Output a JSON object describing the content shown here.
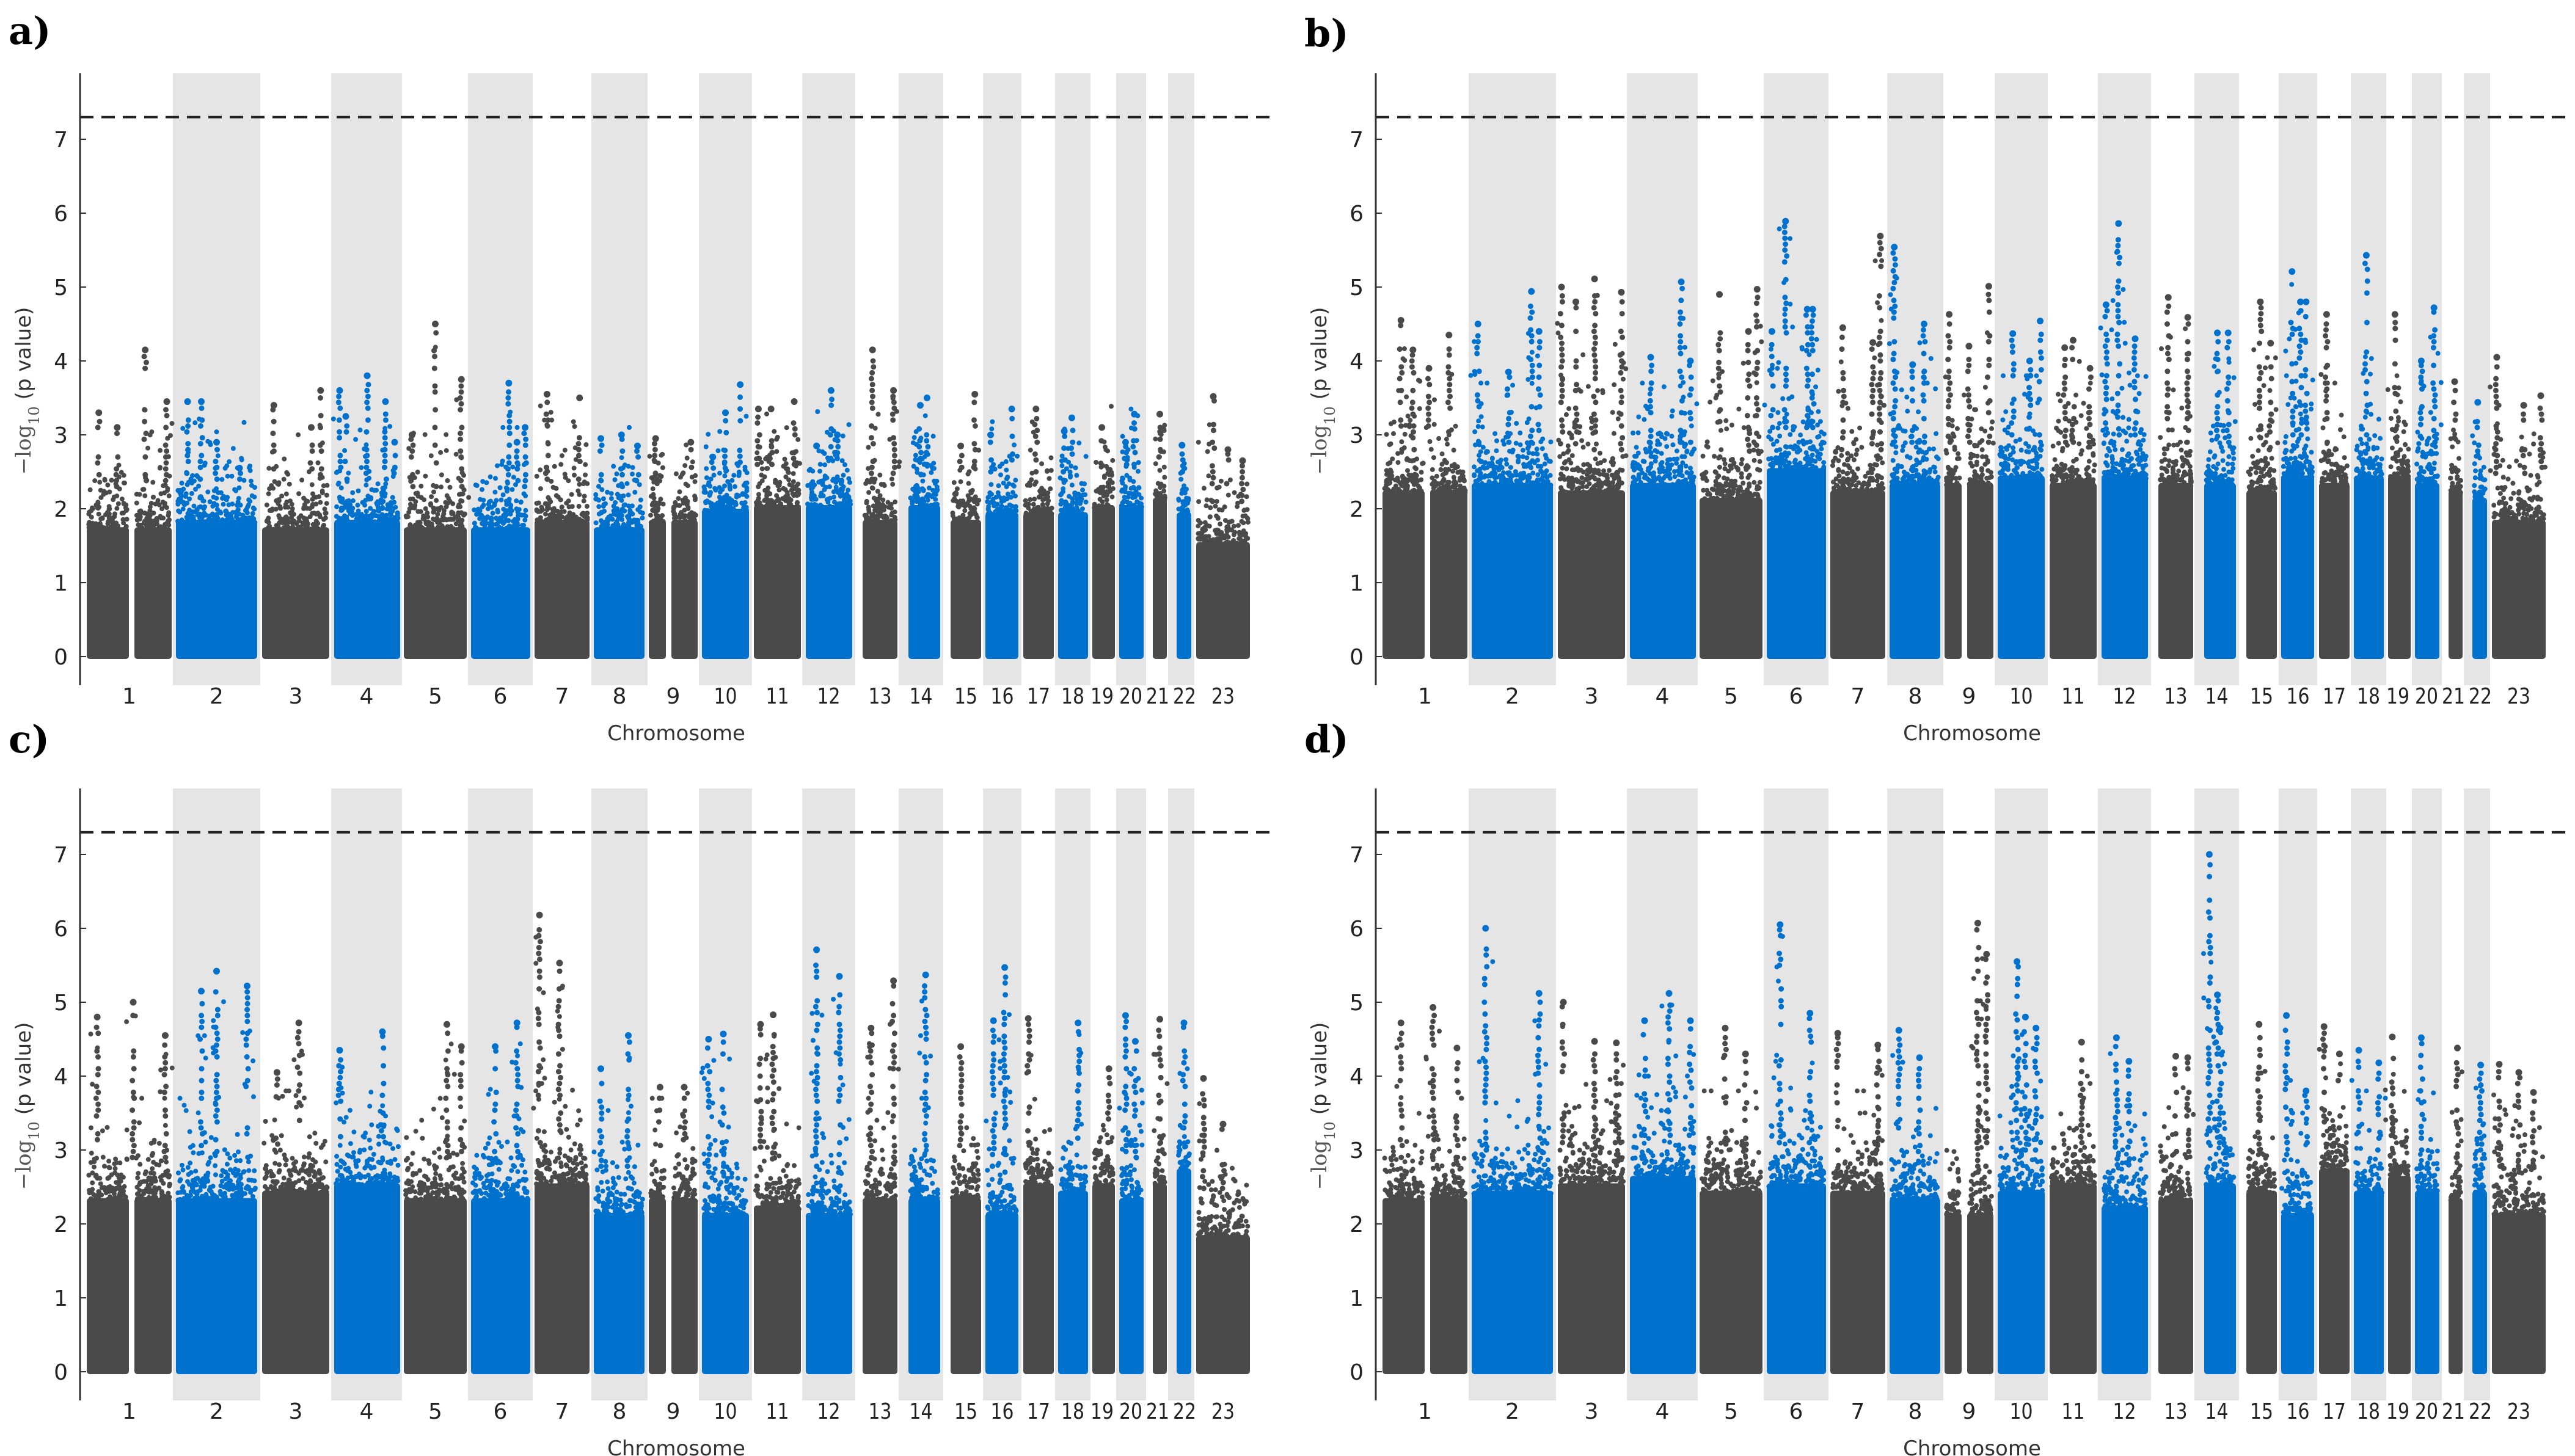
{
  "figure": {
    "colors": {
      "odd": "#4a4a4a",
      "even": "#0072ce",
      "band": "#e5e5e5",
      "threshold": "#222222"
    }
  },
  "chart_data": [
    {
      "type": "scatter",
      "panel_label": "a)",
      "xlabel": "Chromosome",
      "ylabel_parts": {
        "main": "−log",
        "sub": "10",
        "rest": " (p value)"
      },
      "ylim": [
        -0.4,
        7.85
      ],
      "yticks": [
        0,
        1,
        2,
        3,
        4,
        5,
        6,
        7
      ],
      "threshold": 7.3,
      "chromosomes": [
        "1",
        "2",
        "3",
        "4",
        "5",
        "6",
        "7",
        "8",
        "9",
        "10",
        "11",
        "12",
        "13",
        "14",
        "15",
        "16",
        "17",
        "18",
        "19",
        "20",
        "21",
        "22",
        "23"
      ],
      "bulk": [
        2.2,
        2.3,
        2.2,
        2.3,
        2.2,
        2.2,
        2.3,
        2.2,
        2.3,
        2.45,
        2.5,
        2.5,
        2.3,
        2.5,
        2.3,
        2.4,
        2.4,
        2.4,
        2.5,
        2.5,
        2.6,
        2.4,
        2.0
      ],
      "peaks": [
        [
          [
            0.12,
            3.3
          ],
          [
            0.35,
            3.1
          ],
          [
            0.7,
            4.15
          ],
          [
            0.97,
            3.45
          ]
        ],
        [
          [
            0.12,
            3.45
          ],
          [
            0.3,
            3.45
          ],
          [
            0.5,
            2.9
          ],
          [
            0.8,
            2.55
          ]
        ],
        [
          [
            0.15,
            3.4
          ],
          [
            0.75,
            3.1
          ],
          [
            0.9,
            3.6
          ]
        ],
        [
          [
            0.05,
            3.6
          ],
          [
            0.15,
            3.25
          ],
          [
            0.5,
            3.8
          ],
          [
            0.8,
            3.45
          ],
          [
            0.95,
            2.9
          ]
        ],
        [
          [
            0.1,
            3.0
          ],
          [
            0.5,
            4.5
          ],
          [
            0.95,
            3.75
          ]
        ],
        [
          [
            0.65,
            3.7
          ],
          [
            0.8,
            2.9
          ],
          [
            0.95,
            3.1
          ]
        ],
        [
          [
            0.2,
            3.55
          ],
          [
            0.85,
            3.5
          ]
        ],
        [
          [
            0.1,
            2.95
          ],
          [
            0.55,
            3.0
          ],
          [
            0.9,
            2.85
          ]
        ],
        [
          [
            0.1,
            2.95
          ],
          [
            0.9,
            2.9
          ]
        ],
        [
          [
            0.2,
            2.7
          ],
          [
            0.5,
            3.3
          ],
          [
            0.85,
            3.68
          ]
        ],
        [
          [
            0.05,
            3.35
          ],
          [
            0.35,
            3.35
          ],
          [
            0.9,
            3.45
          ]
        ],
        [
          [
            0.2,
            2.85
          ],
          [
            0.55,
            3.6
          ],
          [
            0.7,
            3.0
          ]
        ],
        [
          [
            0.25,
            4.15
          ],
          [
            0.95,
            3.6
          ]
        ],
        [
          [
            0.35,
            3.4
          ],
          [
            0.6,
            3.5
          ]
        ],
        [
          [
            0.3,
            2.85
          ],
          [
            0.85,
            3.55
          ]
        ],
        [
          [
            0.1,
            3.0
          ],
          [
            0.85,
            3.35
          ]
        ],
        [
          [
            0.4,
            3.35
          ]
        ],
        [
          [
            0.15,
            3.05
          ],
          [
            0.45,
            3.23
          ]
        ],
        [
          [
            0.4,
            3.1
          ]
        ],
        [
          [
            0.2,
            2.9
          ],
          [
            0.65,
            3.28
          ]
        ],
        [
          [
            0.5,
            3.28
          ]
        ],
        [
          [
            0.3,
            2.86
          ]
        ],
        [
          [
            0.3,
            3.52
          ],
          [
            0.6,
            2.8
          ],
          [
            0.9,
            2.65
          ]
        ]
      ]
    },
    {
      "type": "scatter",
      "panel_label": "b)",
      "xlabel": "Chromosome",
      "ylabel_parts": {
        "main": "−log",
        "sub": "10",
        "rest": " (p value)"
      },
      "ylim": [
        -0.4,
        7.85
      ],
      "yticks": [
        0,
        1,
        2,
        3,
        4,
        5,
        6,
        7
      ],
      "threshold": 7.3,
      "chromosomes": [
        "1",
        "2",
        "3",
        "4",
        "5",
        "6",
        "7",
        "8",
        "9",
        "10",
        "11",
        "12",
        "13",
        "14",
        "15",
        "16",
        "17",
        "18",
        "19",
        "20",
        "21",
        "22",
        "23"
      ],
      "bulk": [
        2.7,
        2.8,
        2.7,
        2.8,
        2.6,
        3.0,
        2.7,
        2.8,
        2.8,
        2.9,
        2.8,
        2.9,
        2.8,
        2.8,
        2.7,
        2.9,
        2.8,
        2.9,
        2.9,
        2.8,
        2.7,
        2.6,
        2.3
      ],
      "peaks": [
        [
          [
            0.2,
            4.55
          ],
          [
            0.35,
            4.15
          ],
          [
            0.55,
            3.9
          ],
          [
            0.8,
            4.35
          ]
        ],
        [
          [
            0.05,
            4.5
          ],
          [
            0.45,
            3.85
          ],
          [
            0.75,
            4.94
          ],
          [
            0.85,
            4.4
          ]
        ],
        [
          [
            0.02,
            5.0
          ],
          [
            0.25,
            4.8
          ],
          [
            0.55,
            5.11
          ],
          [
            0.98,
            4.93
          ]
        ],
        [
          [
            0.3,
            4.05
          ],
          [
            0.8,
            5.07
          ],
          [
            0.95,
            4.0
          ]
        ],
        [
          [
            0.3,
            4.9
          ],
          [
            0.8,
            4.4
          ],
          [
            0.95,
            4.97
          ]
        ],
        [
          [
            0.05,
            4.4
          ],
          [
            0.3,
            5.89
          ],
          [
            0.7,
            4.7
          ],
          [
            0.8,
            4.7
          ]
        ],
        [
          [
            0.2,
            4.45
          ],
          [
            0.8,
            4.25
          ],
          [
            0.95,
            5.69
          ]
        ],
        [
          [
            0.05,
            5.54
          ],
          [
            0.45,
            3.95
          ],
          [
            0.7,
            4.5
          ]
        ],
        [
          [
            0.05,
            4.63
          ],
          [
            0.5,
            4.2
          ],
          [
            0.95,
            5.01
          ]
        ],
        [
          [
            0.3,
            4.37
          ],
          [
            0.7,
            4.0
          ],
          [
            0.95,
            4.54
          ]
        ],
        [
          [
            0.3,
            4.18
          ],
          [
            0.5,
            4.28
          ],
          [
            0.9,
            3.9
          ]
        ],
        [
          [
            0.05,
            4.76
          ],
          [
            0.35,
            5.86
          ],
          [
            0.75,
            4.3
          ]
        ],
        [
          [
            0.25,
            4.86
          ],
          [
            0.9,
            4.59
          ]
        ],
        [
          [
            0.4,
            4.38
          ],
          [
            0.8,
            4.38
          ]
        ],
        [
          [
            0.45,
            4.8
          ],
          [
            0.85,
            4.24
          ]
        ],
        [
          [
            0.3,
            5.21
          ],
          [
            0.6,
            4.8
          ],
          [
            0.8,
            4.8
          ]
        ],
        [
          [
            0.2,
            4.63
          ]
        ],
        [
          [
            0.4,
            5.43
          ]
        ],
        [
          [
            0.25,
            4.63
          ]
        ],
        [
          [
            0.2,
            4.0
          ],
          [
            0.85,
            4.72
          ]
        ],
        [
          [
            0.4,
            3.72
          ]
        ],
        [
          [
            0.3,
            3.44
          ]
        ],
        [
          [
            0.05,
            4.05
          ],
          [
            0.6,
            3.4
          ],
          [
            0.95,
            3.53
          ]
        ]
      ]
    },
    {
      "type": "scatter",
      "panel_label": "c)",
      "xlabel": "Chromosome",
      "ylabel_parts": {
        "main": "−log",
        "sub": "10",
        "rest": " (p value)"
      },
      "ylim": [
        -0.4,
        7.85
      ],
      "yticks": [
        0,
        1,
        2,
        3,
        4,
        5,
        6,
        7
      ],
      "threshold": 7.3,
      "chromosomes": [
        "1",
        "2",
        "3",
        "4",
        "5",
        "6",
        "7",
        "8",
        "9",
        "10",
        "11",
        "12",
        "13",
        "14",
        "15",
        "16",
        "17",
        "18",
        "19",
        "20",
        "21",
        "22",
        "23"
      ],
      "bulk": [
        2.8,
        2.8,
        2.9,
        3.0,
        2.8,
        2.8,
        3.0,
        2.6,
        2.8,
        2.6,
        2.7,
        2.6,
        2.8,
        2.8,
        2.8,
        2.6,
        3.0,
        2.9,
        3.0,
        2.8,
        3.0,
        3.2,
        2.3
      ],
      "peaks": [
        [
          [
            0.1,
            4.8
          ],
          [
            0.55,
            5.0
          ],
          [
            0.95,
            4.55
          ]
        ],
        [
          [
            0.3,
            5.15
          ],
          [
            0.5,
            5.42
          ],
          [
            0.9,
            5.22
          ]
        ],
        [
          [
            0.2,
            4.05
          ],
          [
            0.55,
            4.72
          ]
        ],
        [
          [
            0.05,
            4.35
          ],
          [
            0.75,
            4.6
          ]
        ],
        [
          [
            0.7,
            4.7
          ],
          [
            0.95,
            4.4
          ]
        ],
        [
          [
            0.4,
            4.4
          ],
          [
            0.8,
            4.72
          ]
        ],
        [
          [
            0.05,
            6.18
          ],
          [
            0.45,
            5.53
          ]
        ],
        [
          [
            0.1,
            4.1
          ],
          [
            0.7,
            4.55
          ]
        ],
        [
          [
            0.2,
            3.85
          ],
          [
            0.75,
            3.85
          ]
        ],
        [
          [
            0.1,
            4.5
          ],
          [
            0.45,
            4.57
          ]
        ],
        [
          [
            0.1,
            4.7
          ],
          [
            0.4,
            4.83
          ]
        ],
        [
          [
            0.2,
            5.71
          ],
          [
            0.75,
            5.35
          ]
        ],
        [
          [
            0.2,
            4.65
          ],
          [
            0.95,
            5.29
          ]
        ],
        [
          [
            0.55,
            5.37
          ]
        ],
        [
          [
            0.3,
            4.4
          ]
        ],
        [
          [
            0.2,
            4.75
          ],
          [
            0.6,
            5.47
          ]
        ],
        [
          [
            0.1,
            4.78
          ]
        ],
        [
          [
            0.7,
            4.72
          ]
        ],
        [
          [
            0.8,
            4.1
          ]
        ],
        [
          [
            0.2,
            4.82
          ],
          [
            0.7,
            4.47
          ]
        ],
        [
          [
            0.5,
            4.77
          ]
        ],
        [
          [
            0.5,
            4.72
          ]
        ],
        [
          [
            0.1,
            3.97
          ],
          [
            0.5,
            3.35
          ]
        ]
      ]
    },
    {
      "type": "scatter",
      "panel_label": "d)",
      "xlabel": "Chromosome",
      "ylabel_parts": {
        "main": "−log",
        "sub": "10",
        "rest": " (p value)"
      },
      "ylim": [
        -0.4,
        7.85
      ],
      "yticks": [
        0,
        1,
        2,
        3,
        4,
        5,
        6,
        7
      ],
      "threshold": 7.3,
      "chromosomes": [
        "1",
        "2",
        "3",
        "4",
        "5",
        "6",
        "7",
        "8",
        "9",
        "10",
        "11",
        "12",
        "13",
        "14",
        "15",
        "16",
        "17",
        "18",
        "19",
        "20",
        "21",
        "22",
        "23"
      ],
      "bulk": [
        2.8,
        2.9,
        3.0,
        3.1,
        2.9,
        3.0,
        2.9,
        2.8,
        2.6,
        2.9,
        3.0,
        2.7,
        2.8,
        3.0,
        2.9,
        2.6,
        3.2,
        2.9,
        3.1,
        2.9,
        2.8,
        2.9,
        2.6
      ],
      "peaks": [
        [
          [
            0.2,
            4.72
          ],
          [
            0.6,
            4.93
          ],
          [
            0.9,
            4.38
          ]
        ],
        [
          [
            0.15,
            6.0
          ],
          [
            0.85,
            5.12
          ]
        ],
        [
          [
            0.05,
            5.0
          ],
          [
            0.55,
            4.47
          ],
          [
            0.9,
            4.45
          ]
        ],
        [
          [
            0.2,
            4.75
          ],
          [
            0.6,
            5.12
          ],
          [
            0.95,
            4.75
          ]
        ],
        [
          [
            0.4,
            4.65
          ],
          [
            0.75,
            4.3
          ]
        ],
        [
          [
            0.2,
            6.05
          ],
          [
            0.75,
            4.85
          ]
        ],
        [
          [
            0.1,
            4.58
          ],
          [
            0.9,
            4.42
          ]
        ],
        [
          [
            0.15,
            4.62
          ],
          [
            0.6,
            4.25
          ]
        ],
        [
          [
            0.7,
            6.07
          ],
          [
            0.9,
            5.65
          ]
        ],
        [
          [
            0.4,
            5.55
          ],
          [
            0.6,
            4.8
          ],
          [
            0.85,
            4.65
          ]
        ],
        [
          [
            0.7,
            4.46
          ]
        ],
        [
          [
            0.3,
            4.52
          ],
          [
            0.6,
            4.2
          ]
        ],
        [
          [
            0.5,
            4.27
          ],
          [
            0.9,
            4.25
          ]
        ],
        [
          [
            0.1,
            7.0
          ],
          [
            0.4,
            5.1
          ],
          [
            0.5,
            4.65
          ]
        ],
        [
          [
            0.4,
            4.7
          ]
        ],
        [
          [
            0.1,
            4.82
          ],
          [
            0.8,
            3.8
          ]
        ],
        [
          [
            0.1,
            4.67
          ],
          [
            0.7,
            4.3
          ]
        ],
        [
          [
            0.1,
            4.35
          ],
          [
            0.9,
            4.18
          ]
        ],
        [
          [
            0.1,
            4.53
          ]
        ],
        [
          [
            0.2,
            4.52
          ]
        ],
        [
          [
            0.7,
            4.38
          ]
        ],
        [
          [
            0.6,
            4.15
          ]
        ],
        [
          [
            0.1,
            4.16
          ],
          [
            0.5,
            4.05
          ],
          [
            0.8,
            3.78
          ]
        ]
      ]
    }
  ]
}
